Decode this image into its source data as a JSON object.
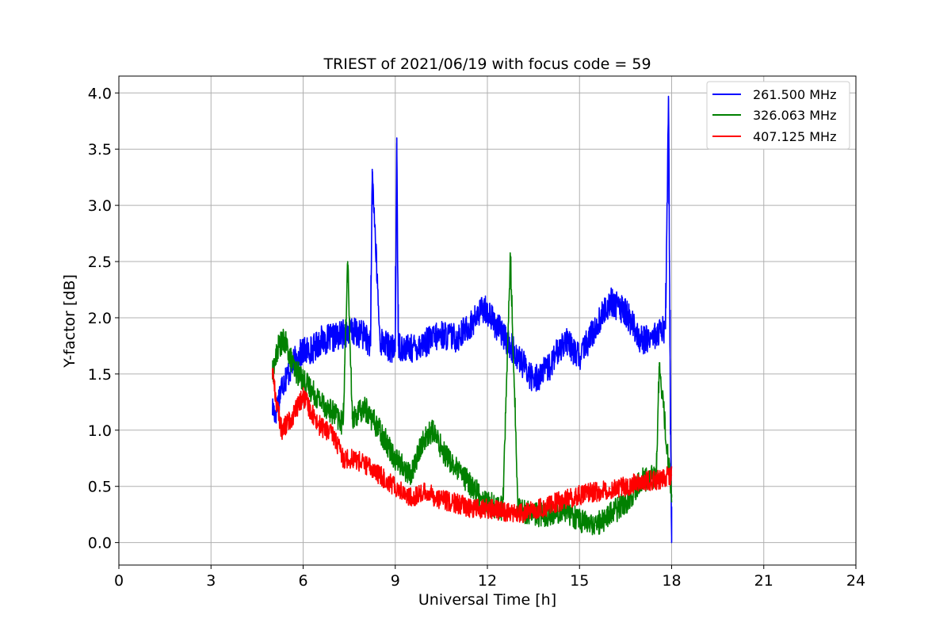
{
  "chart_data": {
    "type": "line",
    "title": "TRIEST of 2021/06/19 with focus code = 59",
    "xlabel": "Universal Time [h]",
    "ylabel": "Y-factor [dB]",
    "xlim": [
      0,
      24
    ],
    "ylim": [
      -0.2,
      4.15
    ],
    "xticks": [
      0,
      3,
      6,
      9,
      12,
      15,
      18,
      21,
      24
    ],
    "xtick_labels": [
      "0",
      "3",
      "6",
      "9",
      "12",
      "15",
      "18",
      "21",
      "24"
    ],
    "yticks": [
      0.0,
      0.5,
      1.0,
      1.5,
      2.0,
      2.5,
      3.0,
      3.5,
      4.0
    ],
    "ytick_labels": [
      "0.0",
      "0.5",
      "1.0",
      "1.5",
      "2.0",
      "2.5",
      "3.0",
      "3.5",
      "4.0"
    ],
    "grid": true,
    "legend_position": "top-right",
    "series": [
      {
        "name": "261.500 MHz",
        "color": "#0000ff",
        "x": [
          5.0,
          5.1,
          5.3,
          5.5,
          5.8,
          6.0,
          6.3,
          6.6,
          7.0,
          7.5,
          8.0,
          8.2,
          8.25,
          8.5,
          9.0,
          9.05,
          9.1,
          9.5,
          10.0,
          10.5,
          11.0,
          11.5,
          11.9,
          12.0,
          12.5,
          13.0,
          13.5,
          14.0,
          14.5,
          15.0,
          15.5,
          16.0,
          16.5,
          17.0,
          17.5,
          17.8,
          17.9,
          17.95,
          18.0
        ],
        "y": [
          1.2,
          1.15,
          1.4,
          1.5,
          1.65,
          1.7,
          1.72,
          1.8,
          1.82,
          1.88,
          1.85,
          1.75,
          3.32,
          1.8,
          1.7,
          3.6,
          1.75,
          1.72,
          1.78,
          1.85,
          1.82,
          1.95,
          2.1,
          2.05,
          1.85,
          1.65,
          1.45,
          1.55,
          1.8,
          1.65,
          1.9,
          2.15,
          2.05,
          1.8,
          1.85,
          1.9,
          3.95,
          1.6,
          0.0
        ]
      },
      {
        "name": "326.063 MHz",
        "color": "#008000",
        "x": [
          5.0,
          5.2,
          5.4,
          5.7,
          6.0,
          6.3,
          6.6,
          7.0,
          7.3,
          7.45,
          7.6,
          8.0,
          8.5,
          9.0,
          9.5,
          9.9,
          10.2,
          10.6,
          11.0,
          11.5,
          12.0,
          12.5,
          12.75,
          13.0,
          13.5,
          14.0,
          14.5,
          15.0,
          15.5,
          16.0,
          16.5,
          17.0,
          17.5,
          17.6,
          18.0
        ],
        "y": [
          1.5,
          1.75,
          1.8,
          1.55,
          1.45,
          1.35,
          1.25,
          1.15,
          1.05,
          2.5,
          1.1,
          1.2,
          1.0,
          0.75,
          0.6,
          0.9,
          1.0,
          0.8,
          0.65,
          0.5,
          0.35,
          0.3,
          2.55,
          0.3,
          0.25,
          0.25,
          0.3,
          0.2,
          0.15,
          0.25,
          0.35,
          0.55,
          0.6,
          1.6,
          0.4
        ]
      },
      {
        "name": "407.125 MHz",
        "color": "#ff0000",
        "x": [
          5.0,
          5.1,
          5.3,
          5.6,
          6.0,
          6.2,
          6.5,
          7.0,
          7.3,
          7.6,
          8.0,
          8.5,
          9.0,
          9.5,
          10.0,
          10.5,
          11.0,
          11.5,
          12.0,
          12.5,
          13.0,
          13.5,
          14.0,
          14.5,
          15.0,
          15.5,
          16.0,
          16.5,
          17.0,
          17.5,
          18.0
        ],
        "y": [
          1.55,
          1.3,
          1.0,
          1.1,
          1.3,
          1.2,
          1.05,
          0.95,
          0.75,
          0.75,
          0.7,
          0.6,
          0.5,
          0.4,
          0.45,
          0.38,
          0.35,
          0.3,
          0.3,
          0.28,
          0.25,
          0.28,
          0.33,
          0.38,
          0.42,
          0.45,
          0.48,
          0.5,
          0.55,
          0.55,
          0.6
        ]
      }
    ]
  }
}
